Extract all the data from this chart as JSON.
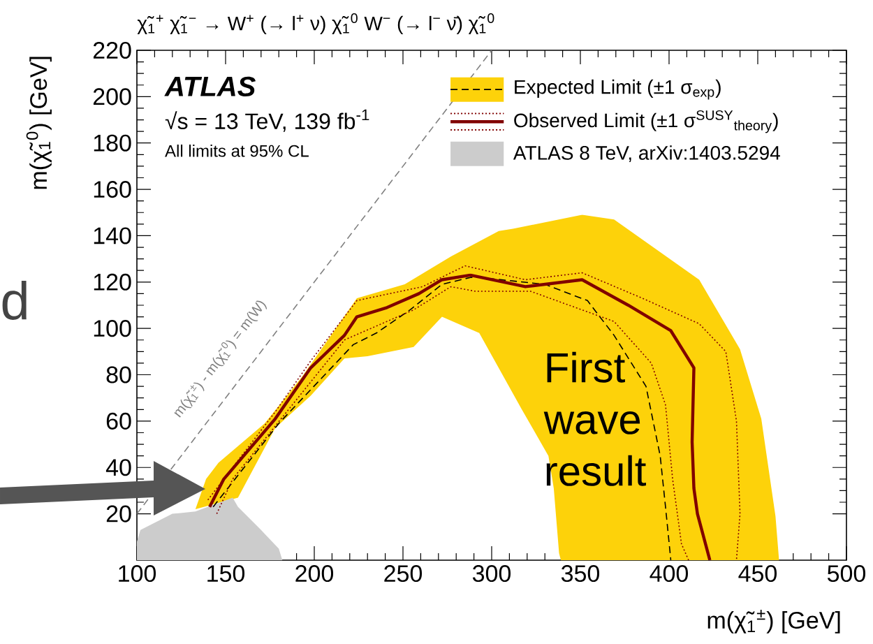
{
  "chart_data": {
    "type": "line",
    "title": "χ̃$_{1}$$^{+}$ χ̃$_{1}$$^{−}$ → W$^{+}$ (→ l$^{+}$ ν) χ̃$_{1}$$^{0}$ W$^{−}$ (→ l$^{−}$ ν̄) χ̃$_{1}$$^{0}$",
    "xlabel": "m(χ̃$_{1}$$^{±}$) [GeV]",
    "ylabel": "m(χ̃$_{1}$$^{0}$) [GeV]",
    "xlim": [
      100,
      500
    ],
    "xticks": [
      100,
      150,
      200,
      250,
      300,
      350,
      400,
      450,
      500
    ],
    "ylim": [
      0,
      220
    ],
    "yticks": [
      20,
      40,
      60,
      80,
      100,
      120,
      140,
      160,
      180,
      200,
      220
    ],
    "legend": "top right",
    "series": [
      {
        "name": "Expected Limit (±1 σ$_{exp}$)",
        "color": "#000000",
        "line_style": "dashed",
        "x": [
          143,
          180,
          222,
          235,
          254,
          272,
          288,
          293,
          330,
          354,
          369,
          387,
          395,
          398,
          401
        ],
        "values": [
          23,
          59,
          93,
          98,
          108,
          119,
          122,
          122,
          119,
          112,
          97,
          75,
          45,
          23,
          0
        ]
      },
      {
        "type": "area",
        "color": "#fdd20a",
        "x": [
          133,
          139,
          146,
          172,
          193,
          224,
          251,
          277,
          304,
          312,
          351,
          369,
          417,
          440,
          452,
          460,
          462,
          339,
          338,
          335,
          332,
          317,
          301,
          293,
          272,
          256,
          230,
          217,
          198,
          178,
          157
        ],
        "values": [
          22,
          35,
          42,
          59,
          79,
          113,
          119,
          131,
          142,
          143,
          149,
          147,
          121,
          91,
          61,
          19,
          0,
          0,
          3,
          31,
          45,
          65,
          87,
          98,
          105,
          92,
          88,
          87,
          71,
          57,
          27
        ]
      },
      {
        "name": "Observed Limit (±1 σ$^{SUSY}$$_{theory}$)",
        "color": "#800000",
        "line_style": "solid",
        "x": [
          141,
          149,
          178,
          198,
          217,
          224,
          241,
          259,
          272,
          288,
          319,
          351,
          377,
          401,
          414,
          413,
          414,
          416,
          423
        ],
        "values": [
          23,
          35,
          61,
          83,
          97,
          105,
          109,
          115,
          121,
          123,
          118,
          121,
          110,
          99,
          83,
          51,
          31,
          20,
          0
        ]
      },
      {
        "color": "#800000",
        "line_style": "dotted",
        "x": [
          140,
          178,
          198,
          224,
          261,
          277,
          285,
          319,
          351,
          385,
          417,
          432,
          438,
          440,
          438
        ],
        "values": [
          26,
          64,
          86,
          112,
          118,
          124,
          127,
          121,
          124,
          113,
          102,
          90,
          60,
          20,
          0
        ]
      },
      {
        "color": "#800000",
        "line_style": "dotted",
        "x": [
          145,
          154,
          217,
          256,
          277,
          291,
          322,
          369,
          390,
          398,
          402,
          407,
          411
        ],
        "values": [
          20,
          35,
          95,
          108,
          118,
          116,
          116,
          103,
          85,
          67,
          35,
          7,
          0
        ]
      },
      {
        "name": "ATLAS 8 TeV, arXiv:1403.5294",
        "type": "area",
        "color": "#cccccc",
        "x": [
          100,
          102,
          120,
          133,
          154,
          157,
          170,
          180,
          182,
          100
        ],
        "values": [
          8,
          13,
          20,
          21,
          27,
          23,
          13,
          5,
          0,
          0
        ]
      },
      {
        "color": "#808080",
        "line_style": "dashed",
        "x": [
          100,
          300
        ],
        "values": [
          20,
          220
        ]
      }
    ],
    "annotations": [
      "ATLAS",
      "√s = 13 TeV, 139 fb$^{-1}$",
      "All limits at 95% CL",
      "First wave result",
      "d",
      "m(χ̃$_{1}$$^{±}$) - m(χ̃$_{1}$$^{0}$) = m(W)"
    ]
  }
}
